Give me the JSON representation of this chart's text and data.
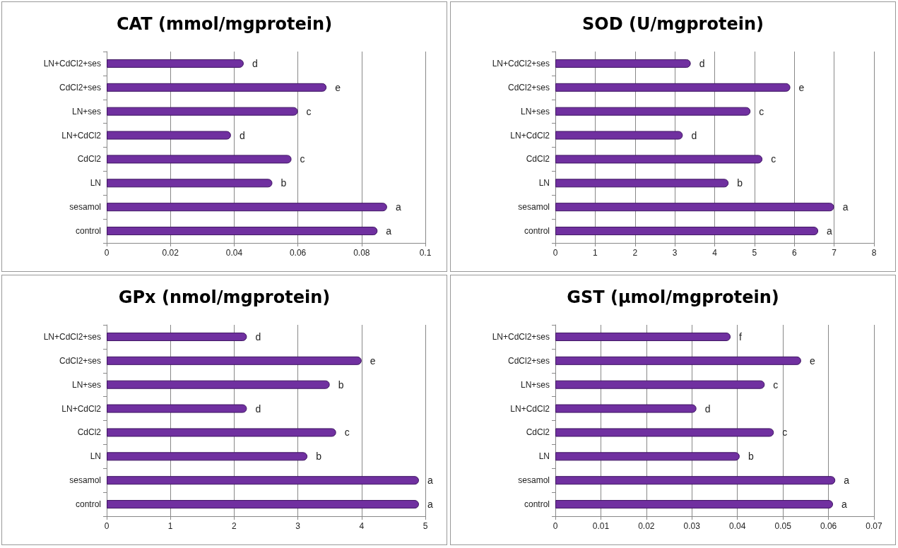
{
  "chart_data": [
    {
      "type": "bar",
      "orientation": "horizontal",
      "title": "CAT (mmol/mgprotein)",
      "categories": [
        "LN+CdCl2+ses",
        "CdCl2+ses",
        "LN+ses",
        "LN+CdCl2",
        "CdCl2",
        "LN",
        "sesamol",
        "control"
      ],
      "values": [
        0.043,
        0.069,
        0.06,
        0.039,
        0.058,
        0.052,
        0.088,
        0.085
      ],
      "color": "#7030a0",
      "xlim": [
        0,
        0.1
      ],
      "xticks": [
        0,
        0.02,
        0.04,
        0.06,
        0.08,
        0.1
      ],
      "grid": "x",
      "annotations": [
        {
          "text": "d",
          "x": 0.043,
          "y": "LN+CdCl2+ses"
        },
        {
          "text": "e",
          "x": 0.069,
          "y": "CdCl2+ses"
        },
        {
          "text": "c",
          "x": 0.06,
          "y": "LN+ses"
        },
        {
          "text": "d",
          "x": 0.039,
          "y": "LN+CdCl2"
        },
        {
          "text": "c",
          "x": 0.058,
          "y": "CdCl2"
        },
        {
          "text": "b",
          "x": 0.052,
          "y": "LN"
        },
        {
          "text": "a",
          "x": 0.088,
          "y": "sesamol"
        },
        {
          "text": "a",
          "x": 0.085,
          "y": "control"
        }
      ]
    },
    {
      "type": "bar",
      "orientation": "horizontal",
      "title": "SOD (U/mgprotein)",
      "categories": [
        "LN+CdCl2+ses",
        "CdCl2+ses",
        "LN+ses",
        "LN+CdCl2",
        "CdCl2",
        "LN",
        "sesamol",
        "control"
      ],
      "values": [
        3.4,
        5.9,
        4.9,
        3.2,
        5.2,
        4.35,
        7.0,
        6.6
      ],
      "color": "#7030a0",
      "xlim": [
        0,
        8
      ],
      "xticks": [
        0,
        1,
        2,
        3,
        4,
        5,
        6,
        7,
        8
      ],
      "grid": "x",
      "annotations": [
        {
          "text": "d",
          "x": 3.4,
          "y": "LN+CdCl2+ses"
        },
        {
          "text": "e",
          "x": 5.9,
          "y": "CdCl2+ses"
        },
        {
          "text": "c",
          "x": 4.9,
          "y": "LN+ses"
        },
        {
          "text": "d",
          "x": 3.2,
          "y": "LN+CdCl2"
        },
        {
          "text": "c",
          "x": 5.2,
          "y": "CdCl2"
        },
        {
          "text": "b",
          "x": 4.35,
          "y": "LN"
        },
        {
          "text": "a",
          "x": 7.0,
          "y": "sesamol"
        },
        {
          "text": "a",
          "x": 6.6,
          "y": "control"
        }
      ]
    },
    {
      "type": "bar",
      "orientation": "horizontal",
      "title": "GPx (nmol/mgprotein)",
      "categories": [
        "LN+CdCl2+ses",
        "CdCl2+ses",
        "LN+ses",
        "LN+CdCl2",
        "CdCl2",
        "LN",
        "sesamol",
        "control"
      ],
      "values": [
        2.2,
        4.0,
        3.5,
        2.2,
        3.6,
        3.15,
        4.9,
        4.9
      ],
      "color": "#7030a0",
      "xlim": [
        0,
        5
      ],
      "xticks": [
        0,
        1,
        2,
        3,
        4,
        5
      ],
      "grid": "x",
      "annotations": [
        {
          "text": "d",
          "x": 2.2,
          "y": "LN+CdCl2+ses"
        },
        {
          "text": "e",
          "x": 4.0,
          "y": "CdCl2+ses"
        },
        {
          "text": "b",
          "x": 3.5,
          "y": "LN+ses"
        },
        {
          "text": "d",
          "x": 2.2,
          "y": "LN+CdCl2"
        },
        {
          "text": "c",
          "x": 3.6,
          "y": "CdCl2"
        },
        {
          "text": "b",
          "x": 3.15,
          "y": "LN"
        },
        {
          "text": "a",
          "x": 4.9,
          "y": "sesamol"
        },
        {
          "text": "a",
          "x": 4.9,
          "y": "control"
        }
      ]
    },
    {
      "type": "bar",
      "orientation": "horizontal",
      "title": "GST (µmol/mgprotein)",
      "categories": [
        "LN+CdCl2+ses",
        "CdCl2+ses",
        "LN+ses",
        "LN+CdCl2",
        "CdCl2",
        "LN",
        "sesamol",
        "control"
      ],
      "values": [
        0.0385,
        0.054,
        0.046,
        0.031,
        0.048,
        0.0405,
        0.0615,
        0.061
      ],
      "color": "#7030a0",
      "xlim": [
        0,
        0.07
      ],
      "xticks": [
        0,
        0.01,
        0.02,
        0.03,
        0.04,
        0.05,
        0.06,
        0.07
      ],
      "grid": "x",
      "annotations": [
        {
          "text": "f",
          "x": 0.0385,
          "y": "LN+CdCl2+ses"
        },
        {
          "text": "e",
          "x": 0.054,
          "y": "CdCl2+ses"
        },
        {
          "text": "c",
          "x": 0.046,
          "y": "LN+ses"
        },
        {
          "text": "d",
          "x": 0.031,
          "y": "LN+CdCl2"
        },
        {
          "text": "c",
          "x": 0.048,
          "y": "CdCl2"
        },
        {
          "text": "b",
          "x": 0.0405,
          "y": "LN"
        },
        {
          "text": "a",
          "x": 0.0615,
          "y": "sesamol"
        },
        {
          "text": "a",
          "x": 0.061,
          "y": "control"
        }
      ]
    }
  ]
}
